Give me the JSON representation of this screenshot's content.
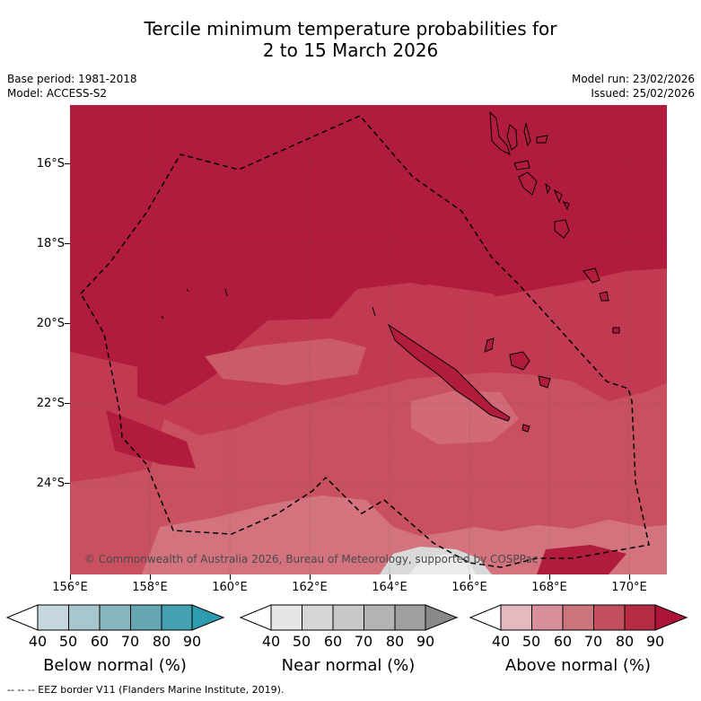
{
  "title": {
    "line1": "Tercile minimum temperature probabilities for",
    "line2": "2 to 15 March 2026"
  },
  "meta_left": {
    "base_period": "Base period: 1981-2018",
    "model": "Model: ACCESS-S2"
  },
  "meta_right": {
    "model_run": "Model run: 23/02/2026",
    "issued": "Issued: 25/02/2026"
  },
  "map": {
    "lat_labels": [
      "16°S",
      "18°S",
      "20°S",
      "22°S",
      "24°S"
    ],
    "lon_labels": [
      "156°E",
      "158°E",
      "160°E",
      "162°E",
      "164°E",
      "166°E",
      "168°E",
      "170°E"
    ],
    "copyright": "© Commonwealth of Australia 2026, Bureau of Meteorology, supported by COSPPac"
  },
  "colorbars": [
    {
      "name": "Below normal (%)",
      "ticks": [
        "40",
        "50",
        "60",
        "70",
        "80",
        "90"
      ],
      "colors": [
        "#ffffff",
        "#c3d7dd",
        "#a6c7ce",
        "#87b6c0",
        "#66a7b3",
        "#45a0b1",
        "#2e9bb0"
      ]
    },
    {
      "name": "Near normal (%)",
      "ticks": [
        "40",
        "50",
        "60",
        "70",
        "80",
        "90"
      ],
      "colors": [
        "#ffffff",
        "#e6e6e6",
        "#d6d6d6",
        "#c8c8c8",
        "#b4b4b4",
        "#a0a0a0",
        "#888888"
      ]
    },
    {
      "name": "Above normal (%)",
      "ticks": [
        "40",
        "50",
        "60",
        "70",
        "80",
        "90"
      ],
      "colors": [
        "#ffffff",
        "#e6b9c1",
        "#d98f99",
        "#cc747c",
        "#c24f5e",
        "#b62d43",
        "#ad1438"
      ]
    }
  ],
  "footer": "--  --  -- EEZ border V11 (Flanders Marine Institute, 2019)."
}
